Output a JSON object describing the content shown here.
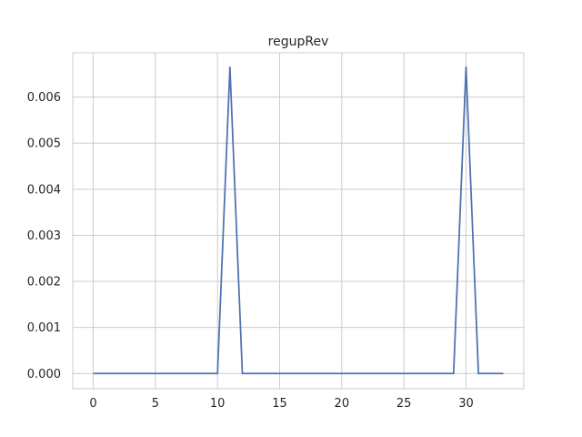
{
  "chart_data": {
    "type": "line",
    "title": "regupRev",
    "xlabel": "",
    "ylabel": "",
    "xlim": [
      -1.65,
      34.65
    ],
    "ylim": [
      -0.00033,
      0.00696
    ],
    "x_ticks": [
      0,
      5,
      10,
      15,
      20,
      25,
      30
    ],
    "y_ticks": [
      0.0,
      0.001,
      0.002,
      0.003,
      0.004,
      0.005,
      0.006
    ],
    "y_tick_labels": [
      "0.000",
      "0.001",
      "0.002",
      "0.003",
      "0.004",
      "0.005",
      "0.006"
    ],
    "grid": true,
    "series": [
      {
        "color": "#4c72b0",
        "x": [
          0,
          1,
          2,
          3,
          4,
          5,
          6,
          7,
          8,
          9,
          10,
          11,
          12,
          13,
          14,
          15,
          16,
          17,
          18,
          19,
          20,
          21,
          22,
          23,
          24,
          25,
          26,
          27,
          28,
          29,
          30,
          31,
          32,
          33
        ],
        "y": [
          0,
          0,
          0,
          0,
          0,
          0,
          0,
          0,
          0,
          0,
          0,
          0.00665,
          0,
          0,
          0,
          0,
          0,
          0,
          0,
          0,
          0,
          0,
          0,
          0,
          0,
          0,
          0,
          0,
          0,
          0,
          0.00665,
          0,
          0,
          0
        ]
      }
    ]
  }
}
